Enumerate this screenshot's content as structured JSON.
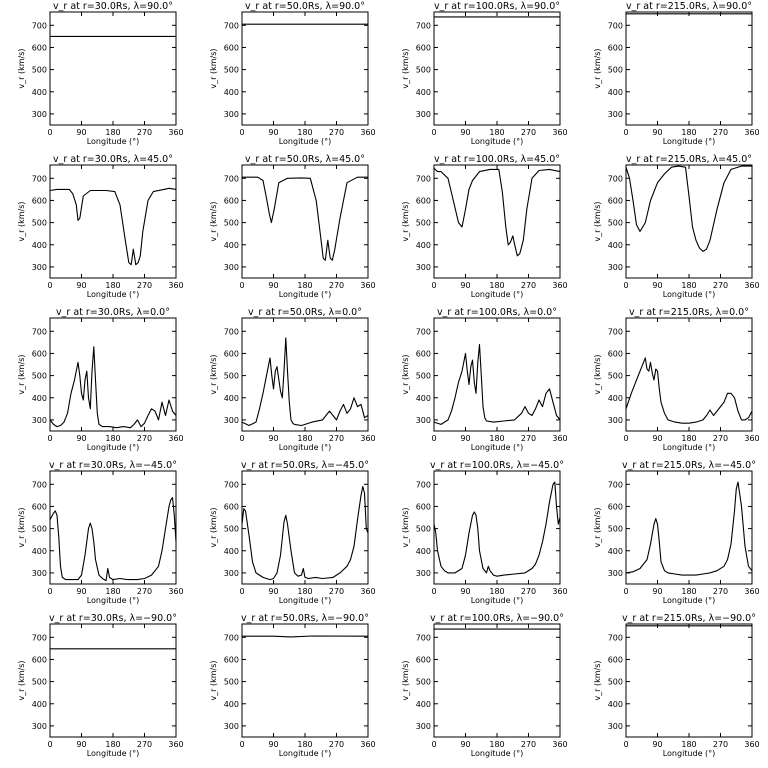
{
  "chart_data": {
    "type": "line",
    "xlabel": "Longitude (°)",
    "ylabel": "v_r (km/s)",
    "xlim": [
      0,
      360
    ],
    "ylim": [
      250,
      760
    ],
    "xticks": [
      0,
      90,
      180,
      270,
      360
    ],
    "yticks": [
      300,
      400,
      500,
      600,
      700
    ],
    "legend": "none",
    "grid": false,
    "panels": [
      {
        "title": "v_r at r=30.0Rs, λ=90.0°",
        "x": [
          0,
          360
        ],
        "y": [
          650,
          650
        ]
      },
      {
        "title": "v_r at r=50.0Rs, λ=90.0°",
        "x": [
          0,
          360
        ],
        "y": [
          705,
          705
        ]
      },
      {
        "title": "v_r at r=100.0Rs, λ=90.0°",
        "x": [
          0,
          360
        ],
        "y": [
          738,
          738
        ]
      },
      {
        "title": "v_r at r=215.0Rs, λ=90.0°",
        "x": [
          0,
          360
        ],
        "y": [
          752,
          752
        ]
      },
      {
        "title": "v_r at r=30.0Rs, λ=45.0°",
        "x": [
          0,
          20,
          40,
          55,
          65,
          75,
          80,
          85,
          95,
          115,
          160,
          185,
          200,
          215,
          225,
          232,
          238,
          245,
          252,
          258,
          265,
          280,
          295,
          320,
          340,
          360
        ],
        "y": [
          645,
          650,
          650,
          650,
          630,
          580,
          510,
          520,
          620,
          645,
          645,
          640,
          580,
          420,
          320,
          310,
          380,
          310,
          320,
          350,
          460,
          600,
          640,
          648,
          655,
          650
        ]
      },
      {
        "title": "v_r at r=50.0Rs, λ=45.0°",
        "x": [
          0,
          25,
          45,
          60,
          70,
          78,
          84,
          92,
          105,
          130,
          170,
          195,
          212,
          225,
          232,
          238,
          245,
          252,
          258,
          265,
          280,
          300,
          330,
          360
        ],
        "y": [
          705,
          705,
          705,
          690,
          610,
          540,
          500,
          560,
          680,
          700,
          702,
          700,
          600,
          430,
          340,
          330,
          420,
          340,
          330,
          380,
          520,
          680,
          705,
          705
        ]
      },
      {
        "title": "v_r at r=100.0Rs, λ=45.0°",
        "x": [
          0,
          10,
          20,
          40,
          55,
          70,
          80,
          90,
          100,
          110,
          130,
          160,
          185,
          195,
          205,
          212,
          218,
          225,
          232,
          238,
          245,
          255,
          265,
          280,
          300,
          330,
          360
        ],
        "y": [
          745,
          730,
          730,
          700,
          600,
          500,
          480,
          560,
          650,
          690,
          730,
          740,
          740,
          640,
          480,
          400,
          410,
          440,
          390,
          350,
          360,
          420,
          560,
          700,
          735,
          740,
          730
        ]
      },
      {
        "title": "v_r at r=215.0Rs, λ=45.0°",
        "x": [
          0,
          10,
          20,
          30,
          40,
          55,
          70,
          90,
          110,
          130,
          150,
          170,
          180,
          190,
          200,
          210,
          220,
          230,
          240,
          260,
          280,
          300,
          330,
          360
        ],
        "y": [
          750,
          700,
          600,
          490,
          460,
          500,
          600,
          680,
          720,
          750,
          755,
          750,
          620,
          480,
          420,
          385,
          370,
          380,
          420,
          560,
          680,
          740,
          755,
          755
        ]
      },
      {
        "title": "v_r at r=30.0Rs, λ=0.0°",
        "x": [
          0,
          10,
          20,
          30,
          40,
          50,
          60,
          70,
          80,
          85,
          90,
          95,
          100,
          105,
          110,
          115,
          120,
          125,
          130,
          135,
          140,
          150,
          170,
          190,
          210,
          230,
          240,
          250,
          260,
          270,
          280,
          290,
          300,
          310,
          320,
          330,
          340,
          350,
          360
        ],
        "y": [
          300,
          280,
          270,
          275,
          290,
          330,
          420,
          480,
          560,
          500,
          420,
          390,
          480,
          520,
          400,
          350,
          520,
          630,
          480,
          330,
          280,
          270,
          270,
          265,
          270,
          265,
          280,
          300,
          270,
          285,
          320,
          350,
          340,
          300,
          380,
          320,
          390,
          340,
          320
        ]
      },
      {
        "title": "v_r at r=50.0Rs, λ=0.0°",
        "x": [
          0,
          20,
          40,
          50,
          60,
          70,
          80,
          85,
          90,
          95,
          100,
          110,
          115,
          120,
          125,
          130,
          135,
          140,
          145,
          150,
          170,
          200,
          230,
          250,
          260,
          270,
          280,
          290,
          300,
          310,
          320,
          330,
          340,
          350,
          360
        ],
        "y": [
          290,
          275,
          290,
          350,
          420,
          500,
          580,
          500,
          440,
          520,
          540,
          430,
          400,
          520,
          670,
          520,
          380,
          300,
          285,
          280,
          275,
          290,
          300,
          340,
          320,
          300,
          340,
          370,
          330,
          350,
          400,
          360,
          370,
          310,
          320
        ]
      },
      {
        "title": "v_r at r=100.0Rs, λ=0.0°",
        "x": [
          0,
          20,
          40,
          50,
          60,
          70,
          80,
          90,
          95,
          100,
          105,
          110,
          115,
          120,
          125,
          130,
          135,
          140,
          145,
          150,
          170,
          200,
          230,
          250,
          260,
          270,
          280,
          290,
          300,
          310,
          320,
          330,
          340,
          350,
          360
        ],
        "y": [
          290,
          280,
          300,
          340,
          400,
          470,
          520,
          600,
          520,
          460,
          540,
          570,
          470,
          420,
          560,
          640,
          500,
          360,
          310,
          295,
          290,
          295,
          300,
          330,
          360,
          330,
          320,
          350,
          390,
          360,
          420,
          440,
          380,
          320,
          300
        ]
      },
      {
        "title": "v_r at r=215.0Rs, λ=0.0°",
        "x": [
          0,
          15,
          30,
          45,
          55,
          60,
          65,
          70,
          75,
          80,
          85,
          90,
          95,
          100,
          110,
          120,
          140,
          160,
          180,
          200,
          220,
          230,
          240,
          250,
          260,
          270,
          280,
          290,
          300,
          310,
          320,
          330,
          340,
          350,
          360
        ],
        "y": [
          350,
          420,
          480,
          540,
          580,
          530,
          520,
          560,
          510,
          480,
          530,
          520,
          440,
          380,
          330,
          300,
          290,
          285,
          285,
          290,
          300,
          320,
          345,
          320,
          340,
          360,
          380,
          420,
          420,
          400,
          340,
          300,
          300,
          310,
          340
        ]
      },
      {
        "title": "v_r at r=30.0Rs, λ=−45.0°",
        "x": [
          0,
          10,
          15,
          20,
          25,
          30,
          35,
          45,
          60,
          80,
          90,
          100,
          110,
          115,
          120,
          125,
          130,
          140,
          150,
          160,
          165,
          170,
          180,
          200,
          220,
          250,
          270,
          290,
          310,
          320,
          330,
          340,
          345,
          350,
          355,
          360
        ],
        "y": [
          540,
          570,
          580,
          560,
          460,
          330,
          280,
          270,
          270,
          270,
          290,
          380,
          500,
          525,
          500,
          440,
          360,
          290,
          275,
          265,
          320,
          280,
          270,
          275,
          270,
          270,
          275,
          290,
          330,
          400,
          500,
          600,
          630,
          640,
          560,
          440
        ]
      },
      {
        "title": "v_r at r=50.0Rs, λ=−45.0°",
        "x": [
          0,
          5,
          10,
          20,
          30,
          40,
          60,
          80,
          90,
          100,
          110,
          120,
          125,
          130,
          140,
          150,
          160,
          170,
          175,
          180,
          190,
          210,
          230,
          260,
          280,
          300,
          310,
          320,
          330,
          340,
          345,
          350,
          355,
          360
        ],
        "y": [
          520,
          590,
          580,
          470,
          350,
          300,
          280,
          270,
          275,
          300,
          380,
          530,
          560,
          520,
          400,
          300,
          285,
          290,
          320,
          280,
          275,
          280,
          275,
          280,
          300,
          330,
          360,
          420,
          540,
          650,
          690,
          660,
          500,
          480
        ]
      },
      {
        "title": "v_r at r=100.0Rs, λ=−45.0°",
        "x": [
          0,
          5,
          10,
          20,
          30,
          40,
          60,
          80,
          90,
          100,
          110,
          115,
          120,
          125,
          130,
          140,
          150,
          155,
          160,
          170,
          180,
          200,
          230,
          260,
          280,
          290,
          300,
          310,
          320,
          330,
          340,
          345,
          350,
          355,
          360
        ],
        "y": [
          520,
          480,
          400,
          330,
          310,
          300,
          300,
          320,
          380,
          480,
          560,
          575,
          560,
          500,
          400,
          320,
          300,
          330,
          310,
          290,
          285,
          290,
          295,
          300,
          320,
          340,
          380,
          440,
          520,
          620,
          700,
          710,
          600,
          520,
          550
        ]
      },
      {
        "title": "v_r at r=215.0Rs, λ=−45.0°",
        "x": [
          0,
          20,
          40,
          60,
          70,
          80,
          85,
          90,
          95,
          100,
          110,
          120,
          140,
          160,
          180,
          200,
          220,
          240,
          260,
          280,
          290,
          300,
          310,
          315,
          320,
          330,
          340,
          350,
          360
        ],
        "y": [
          300,
          305,
          320,
          360,
          430,
          520,
          545,
          520,
          440,
          350,
          310,
          300,
          295,
          290,
          290,
          290,
          295,
          300,
          310,
          330,
          360,
          430,
          580,
          680,
          710,
          600,
          420,
          330,
          310
        ]
      },
      {
        "title": "v_r at r=30.0Rs, λ=−90.0°",
        "x": [
          0,
          360
        ],
        "y": [
          648,
          648
        ]
      },
      {
        "title": "v_r at r=50.0Rs, λ=−90.0°",
        "x": [
          0,
          90,
          140,
          200,
          360
        ],
        "y": [
          705,
          705,
          702,
          706,
          705
        ]
      },
      {
        "title": "v_r at r=100.0Rs, λ=−90.0°",
        "x": [
          0,
          360
        ],
        "y": [
          737,
          737
        ]
      },
      {
        "title": "v_r at r=215.0Rs, λ=−90.0°",
        "x": [
          0,
          360
        ],
        "y": [
          752,
          752
        ]
      }
    ]
  }
}
